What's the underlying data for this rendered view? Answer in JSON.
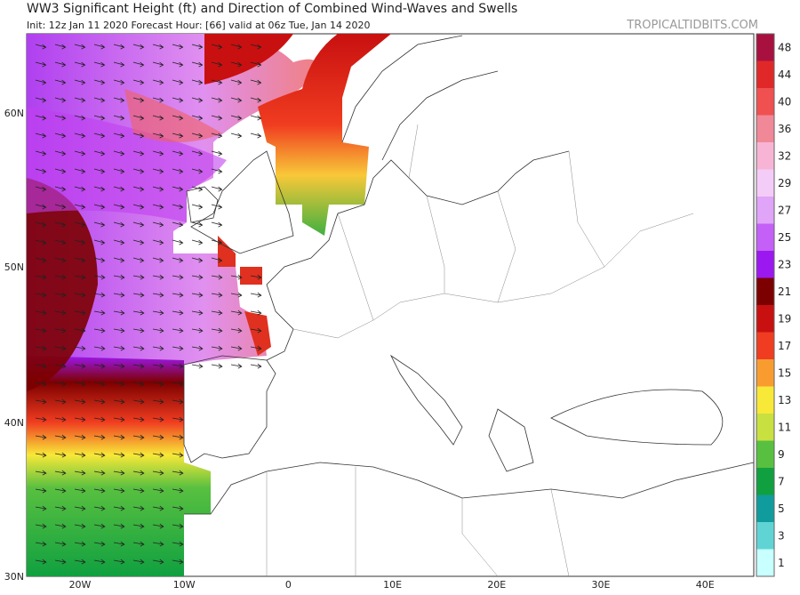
{
  "header": {
    "title": "WW3 Significant Height (ft) and Direction of Combined Wind-Waves and Swells",
    "subtitle": "Init: 12z Jan 11 2020   Forecast Hour: [66]   valid at 06z Tue, Jan 14 2020",
    "credit": "TROPICALTIDBITS.COM"
  },
  "map": {
    "lat_labels": [
      "60N",
      "50N",
      "40N",
      "30N"
    ],
    "lon_labels": [
      "20W",
      "10W",
      "0",
      "10E",
      "20E",
      "30E",
      "40E"
    ]
  },
  "colorbar": {
    "ticks": [
      1,
      3,
      5,
      7,
      9,
      11,
      13,
      15,
      17,
      19,
      21,
      23,
      25,
      27,
      29,
      32,
      36,
      40,
      44,
      48
    ],
    "colors": [
      "#c8ffff",
      "#60d4d4",
      "#109c9c",
      "#10a040",
      "#58c040",
      "#c8e040",
      "#f8e838",
      "#f89c30",
      "#f03c20",
      "#c81010",
      "#7c0000",
      "#9c18f0",
      "#c460f8",
      "#e0a4f8",
      "#f4ccf8",
      "#f8b4d4",
      "#f08898",
      "#f05050",
      "#e02828",
      "#a81040"
    ]
  }
}
